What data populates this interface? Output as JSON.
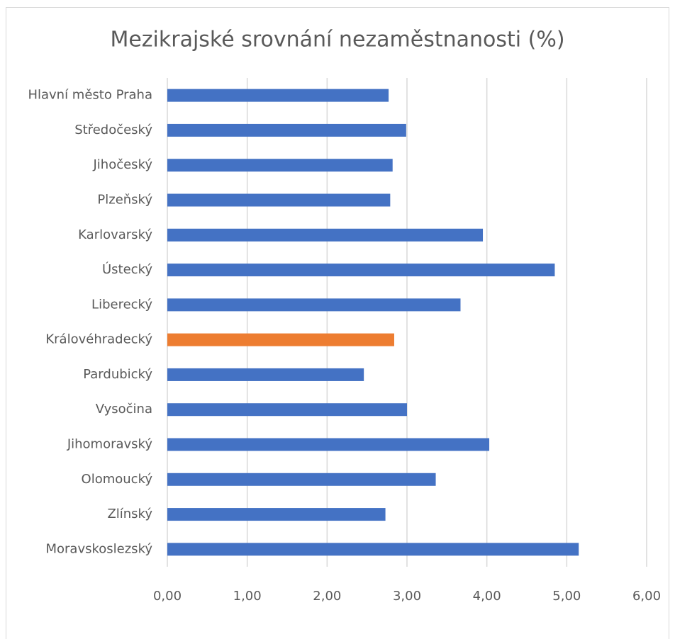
{
  "chart_data": {
    "type": "bar",
    "orientation": "horizontal",
    "title": "Mezikrajské srovnání nezaměstnanosti (%)",
    "categories": [
      "Hlavní město Praha",
      "Středočeský",
      "Jihočeský",
      "Plzeňský",
      "Karlovarský",
      "Ústecký",
      "Liberecký",
      "Královéhradecký",
      "Pardubický",
      "Vysočina",
      "Jihomoravský",
      "Olomoucký",
      "Zlínský",
      "Moravskoslezský"
    ],
    "values": [
      2.77,
      2.99,
      2.82,
      2.79,
      3.95,
      4.85,
      3.67,
      2.84,
      2.46,
      3.0,
      4.03,
      3.36,
      2.73,
      5.15
    ],
    "colors": [
      "#4472c4",
      "#4472c4",
      "#4472c4",
      "#4472c4",
      "#4472c4",
      "#4472c4",
      "#4472c4",
      "#ed7d31",
      "#4472c4",
      "#4472c4",
      "#4472c4",
      "#4472c4",
      "#4472c4",
      "#4472c4"
    ],
    "xlim": [
      0,
      6
    ],
    "xticks": [
      {
        "value": 0,
        "label": "0,00"
      },
      {
        "value": 1,
        "label": "1,00"
      },
      {
        "value": 2,
        "label": "2,00"
      },
      {
        "value": 3,
        "label": "3,00"
      },
      {
        "value": 4,
        "label": "4,00"
      },
      {
        "value": 5,
        "label": "5,00"
      },
      {
        "value": 6,
        "label": "6,00"
      }
    ],
    "grid": true
  }
}
